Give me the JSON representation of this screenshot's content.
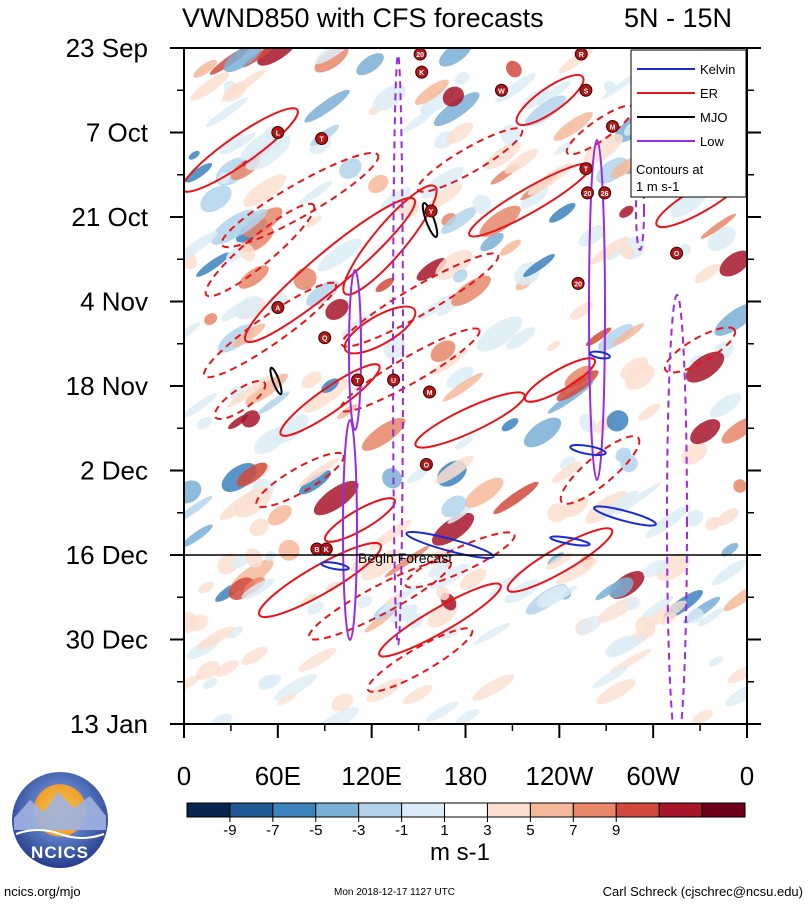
{
  "colors": {
    "kelvin": "#1a2bd6",
    "er": "#e8141a",
    "mjo": "#000000",
    "low": "#9a2be0",
    "background": "#ffffff"
  },
  "footer": {
    "site": "ncics.org/mjo",
    "timestamp": "Mon 2018-12-17 1127 UTC",
    "author": "Carl Schreck (cjschrec@ncsu.edu)",
    "logo_text": "NCICS"
  },
  "chart_data": {
    "type": "heatmap",
    "title": "VWND850 with CFS forecasts",
    "subtitle": "5N - 15N",
    "x_ticks": [
      "0",
      "60E",
      "120E",
      "180",
      "120W",
      "60W",
      "0"
    ],
    "y_ticks": [
      "23 Sep",
      "7 Oct",
      "21 Oct",
      "4 Nov",
      "18 Nov",
      "2 Dec",
      "16 Dec",
      "30 Dec",
      "13 Jan"
    ],
    "xlim": [
      0,
      360
    ],
    "ylim": [
      "2018-09-23",
      "2019-01-13"
    ],
    "forecast_start": "2018-12-16",
    "forecast_label": "Begin Forecast",
    "legend": {
      "entries": [
        {
          "name": "Kelvin",
          "color_key": "kelvin"
        },
        {
          "name": "ER",
          "color_key": "er"
        },
        {
          "name": "MJO",
          "color_key": "mjo"
        },
        {
          "name": "Low",
          "color_key": "low"
        }
      ],
      "note": "Contours at 1 m s-1",
      "placement": "top-right"
    },
    "colorbar": {
      "unit": "m s-1",
      "labels": [
        "-9",
        "-7",
        "-5",
        "-3",
        "-1",
        "1",
        "3",
        "5",
        "7",
        "9"
      ],
      "colors": [
        "#08254f",
        "#1d5a96",
        "#3c82bd",
        "#7aafd6",
        "#b3d3eb",
        "#dcecf6",
        "#ffffff",
        "#fbdfd0",
        "#f6b89a",
        "#e8866a",
        "#d14a3d",
        "#a6152a",
        "#6b0018"
      ]
    },
    "storms": [
      {
        "label": "L",
        "x": 60,
        "y": "2018-10-07"
      },
      {
        "label": "T",
        "x": 88,
        "y": "2018-10-08"
      },
      {
        "label": "20",
        "x": 151,
        "y": "2018-09-24"
      },
      {
        "label": "K",
        "x": 152,
        "y": "2018-09-27"
      },
      {
        "label": "W",
        "x": 203,
        "y": "2018-09-30"
      },
      {
        "label": "R",
        "x": 254,
        "y": "2018-09-24"
      },
      {
        "label": "S",
        "x": 257,
        "y": "2018-09-30"
      },
      {
        "label": "M",
        "x": 274,
        "y": "2018-10-06"
      },
      {
        "label": "T",
        "x": 257,
        "y": "2018-10-13"
      },
      {
        "label": "20",
        "x": 258,
        "y": "2018-10-17"
      },
      {
        "label": "26",
        "x": 269,
        "y": "2018-10-17"
      },
      {
        "label": "Y",
        "x": 158,
        "y": "2018-10-20"
      },
      {
        "label": "O",
        "x": 315,
        "y": "2018-10-27"
      },
      {
        "label": "20",
        "x": 252,
        "y": "2018-11-01"
      },
      {
        "label": "A",
        "x": 60,
        "y": "2018-11-05"
      },
      {
        "label": "Q",
        "x": 90,
        "y": "2018-11-10"
      },
      {
        "label": "T",
        "x": 111,
        "y": "2018-11-17"
      },
      {
        "label": "U",
        "x": 134,
        "y": "2018-11-17"
      },
      {
        "label": "M",
        "x": 157,
        "y": "2018-11-19"
      },
      {
        "label": "O",
        "x": 155,
        "y": "2018-12-01"
      },
      {
        "label": "B",
        "x": 85,
        "y": "2018-12-15"
      },
      {
        "label": "K",
        "x": 91,
        "y": "2018-12-15"
      }
    ]
  }
}
